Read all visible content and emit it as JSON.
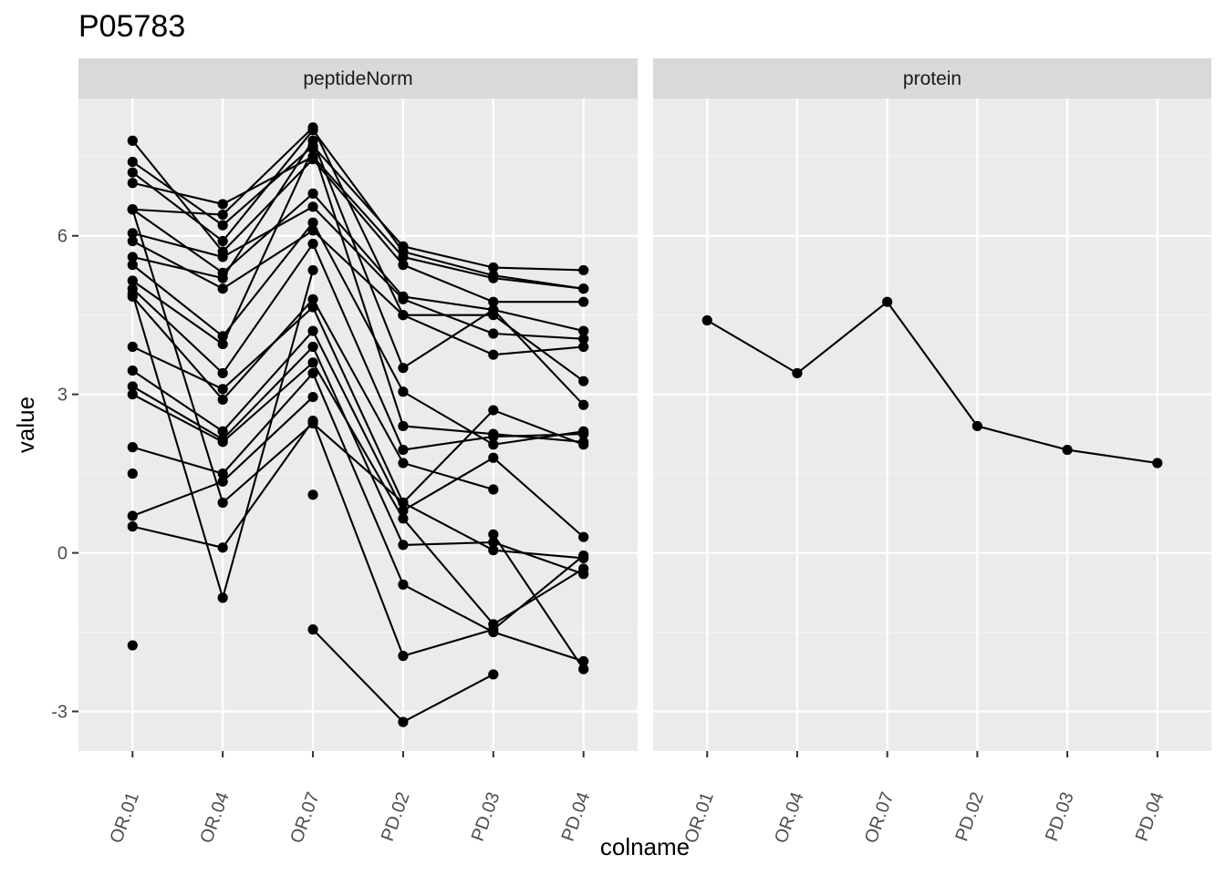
{
  "chart_data": {
    "type": "line",
    "title": "P05783",
    "xlabel": "colname",
    "ylabel": "value",
    "categories": [
      "OR.01",
      "OR.04",
      "OR.07",
      "PD.02",
      "PD.03",
      "PD.04"
    ],
    "ylim": [
      -3.75,
      8.6
    ],
    "yticks": [
      -3,
      0,
      3,
      6
    ],
    "grid": true,
    "panels": [
      {
        "name": "peptideNorm",
        "series": [
          {
            "values": [
              7.4,
              6.2,
              7.7,
              5.8,
              5.4,
              5.35
            ]
          },
          {
            "values": [
              7.2,
              5.9,
              8.0,
              5.7,
              5.25,
              5.0
            ]
          },
          {
            "values": [
              7.0,
              6.6,
              7.5,
              5.6,
              5.2,
              5.0
            ]
          },
          {
            "values": [
              7.8,
              5.7,
              7.45,
              5.45,
              4.75,
              4.75
            ]
          },
          {
            "values": [
              6.5,
              5.3,
              6.8,
              4.85,
              4.6,
              4.2
            ]
          },
          {
            "values": [
              6.5,
              6.4,
              8.05,
              4.5,
              4.5,
              3.25
            ]
          },
          {
            "values": [
              6.05,
              5.6,
              6.55,
              4.8,
              4.15,
              4.05
            ]
          },
          {
            "values": [
              5.9,
              5.0,
              6.1,
              4.5,
              3.75,
              3.9
            ]
          },
          {
            "values": [
              5.6,
              5.2,
              7.8,
              3.5,
              4.6,
              2.8
            ]
          },
          {
            "values": [
              5.45,
              4.1,
              6.25,
              3.05,
              2.05,
              2.3
            ]
          },
          {
            "values": [
              5.15,
              3.95,
              7.65,
              2.4,
              2.25,
              2.1
            ]
          },
          {
            "values": [
              5.0,
              3.4,
              5.85,
              1.95,
              2.2,
              2.25
            ]
          },
          {
            "values": [
              4.85,
              2.9,
              4.8,
              1.7,
              1.2,
              null
            ]
          },
          {
            "values": [
              3.9,
              3.1,
              4.65,
              0.95,
              2.7,
              2.05
            ]
          },
          {
            "values": [
              3.45,
              2.3,
              4.2,
              0.8,
              1.8,
              0.3
            ]
          },
          {
            "values": [
              3.15,
              2.15,
              3.9,
              0.15,
              0.2,
              -0.4
            ]
          },
          {
            "values": [
              3.0,
              2.1,
              3.6,
              0.65,
              -1.35,
              -0.3
            ]
          },
          {
            "values": [
              2.0,
              1.5,
              3.4,
              -0.6,
              -1.5,
              -2.05
            ]
          },
          {
            "values": [
              0.7,
              1.35,
              2.95,
              null,
              0.35,
              -2.2
            ]
          },
          {
            "values": [
              0.5,
              0.1,
              2.5,
              -1.95,
              -1.45,
              -0.05
            ]
          },
          {
            "values": [
              6.5,
              0.95,
              2.45,
              0.95,
              0.05,
              -0.1
            ]
          },
          {
            "values": [
              4.9,
              -0.85,
              5.35,
              null,
              null,
              null
            ]
          },
          {
            "values": [
              1.5,
              null,
              1.1,
              null,
              null,
              null
            ]
          },
          {
            "values": [
              -1.75,
              null,
              -1.45,
              -3.2,
              -2.3,
              null
            ]
          }
        ]
      },
      {
        "name": "protein",
        "series": [
          {
            "values": [
              4.4,
              3.4,
              4.75,
              2.4,
              1.95,
              1.7
            ]
          }
        ]
      }
    ]
  }
}
